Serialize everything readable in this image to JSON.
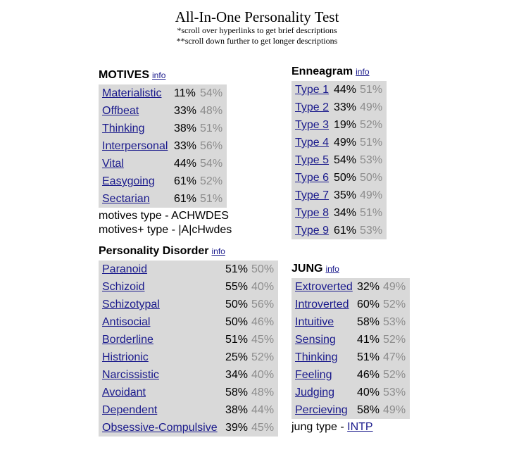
{
  "header": {
    "title": "All-In-One Personality Test",
    "note1": "*scroll over hyperlinks to get brief descriptions",
    "note2": "**scroll down further to get longer descriptions"
  },
  "motives": {
    "heading": "MOTIVES",
    "info": "info",
    "rows": [
      {
        "name": "Materialistic",
        "v1": "11%",
        "v2": "54%"
      },
      {
        "name": "Offbeat",
        "v1": "33%",
        "v2": "48%"
      },
      {
        "name": "Thinking",
        "v1": "38%",
        "v2": "51%"
      },
      {
        "name": "Interpersonal",
        "v1": "33%",
        "v2": "56%"
      },
      {
        "name": "Vital",
        "v1": "44%",
        "v2": "54%"
      },
      {
        "name": "Easygoing",
        "v1": "61%",
        "v2": "52%"
      },
      {
        "name": "Sectarian",
        "v1": "61%",
        "v2": "51%"
      }
    ],
    "type_line": "motives type - ACHWDES",
    "type_plus_line": "motives+ type - |A|cHwdes"
  },
  "enneagram": {
    "heading": "Enneagram",
    "info": "info",
    "rows": [
      {
        "name": "Type 1",
        "v1": "44%",
        "v2": "51%"
      },
      {
        "name": "Type 2",
        "v1": "33%",
        "v2": "49%"
      },
      {
        "name": "Type 3",
        "v1": "19%",
        "v2": "52%"
      },
      {
        "name": "Type 4",
        "v1": "49%",
        "v2": "51%"
      },
      {
        "name": "Type 5",
        "v1": "54%",
        "v2": "53%"
      },
      {
        "name": "Type 6",
        "v1": "50%",
        "v2": "50%"
      },
      {
        "name": "Type 7",
        "v1": "35%",
        "v2": "49%"
      },
      {
        "name": "Type 8",
        "v1": "34%",
        "v2": "51%"
      },
      {
        "name": "Type 9",
        "v1": "61%",
        "v2": "53%"
      }
    ]
  },
  "disorder": {
    "heading": "Personality Disorder",
    "info": "info",
    "rows": [
      {
        "name": "Paranoid",
        "v1": "51%",
        "v2": "50%"
      },
      {
        "name": "Schizoid",
        "v1": "55%",
        "v2": "40%"
      },
      {
        "name": "Schizotypal",
        "v1": "50%",
        "v2": "56%"
      },
      {
        "name": "Antisocial",
        "v1": "50%",
        "v2": "46%"
      },
      {
        "name": "Borderline",
        "v1": "51%",
        "v2": "45%"
      },
      {
        "name": "Histrionic",
        "v1": "25%",
        "v2": "52%"
      },
      {
        "name": "Narcissistic",
        "v1": "34%",
        "v2": "40%"
      },
      {
        "name": "Avoidant",
        "v1": "58%",
        "v2": "48%"
      },
      {
        "name": "Dependent",
        "v1": "38%",
        "v2": "44%"
      },
      {
        "name": "Obsessive-Compulsive",
        "v1": "39%",
        "v2": "45%"
      }
    ]
  },
  "jung": {
    "heading": "JUNG",
    "info": "info",
    "rows": [
      {
        "name": "Extroverted",
        "v1": "32%",
        "v2": "49%"
      },
      {
        "name": "Introverted",
        "v1": "60%",
        "v2": "52%"
      },
      {
        "name": "Intuitive",
        "v1": "58%",
        "v2": "53%"
      },
      {
        "name": "Sensing",
        "v1": "41%",
        "v2": "52%"
      },
      {
        "name": "Thinking",
        "v1": "51%",
        "v2": "47%"
      },
      {
        "name": "Feeling",
        "v1": "46%",
        "v2": "52%"
      },
      {
        "name": "Judging",
        "v1": "40%",
        "v2": "53%"
      },
      {
        "name": "Percieving",
        "v1": "58%",
        "v2": "49%"
      }
    ],
    "type_prefix": "jung type - ",
    "type_value": "INTP"
  }
}
